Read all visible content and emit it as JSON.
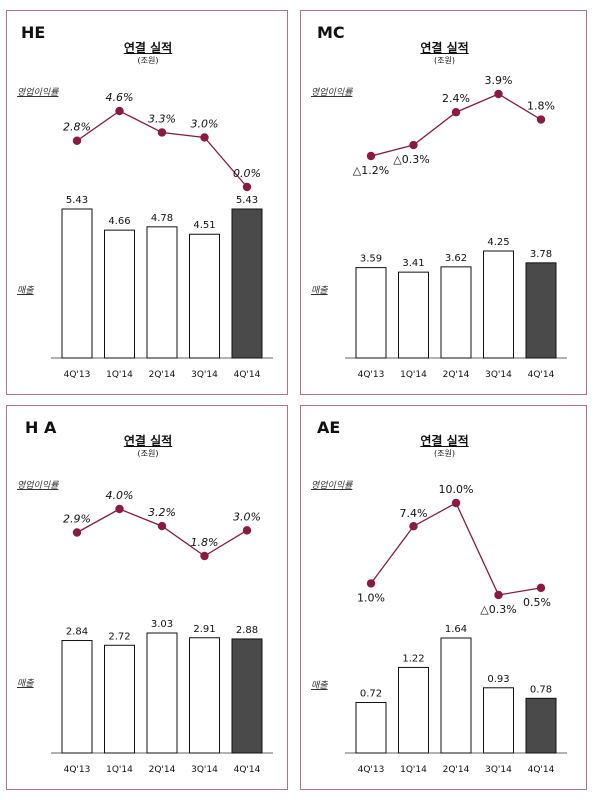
{
  "colors": {
    "line": "#8b1a3e",
    "dot": "#8b1a3e",
    "bar_fill": "#ffffff",
    "bar_highlight": "#4a4a4a",
    "border": "#b07480"
  },
  "labels": {
    "op_margin": "영업이익률",
    "sales": "매출"
  },
  "panels": [
    {
      "segment": "HE",
      "title": "연결 실적",
      "unit": "(조원)",
      "chart_data": {
        "type": "bar",
        "categories": [
          "4Q'13",
          "1Q'14",
          "2Q'14",
          "3Q'14",
          "4Q'14"
        ],
        "sales": [
          5.43,
          4.66,
          4.78,
          4.51,
          5.43
        ],
        "sales_labels": [
          "5.43",
          "4.66",
          "4.78",
          "4.51",
          "5.43"
        ],
        "margin": [
          2.8,
          4.6,
          3.3,
          3.0,
          0.0
        ],
        "margin_labels": [
          "2.8%",
          "4.6%",
          "3.3%",
          "3.0%",
          "0.0%"
        ],
        "highlight_index": 4
      }
    },
    {
      "segment": "MC",
      "title": "연결 실적",
      "unit": "(조원)",
      "chart_data": {
        "type": "bar",
        "categories": [
          "4Q'13",
          "1Q'14",
          "2Q'14",
          "3Q'14",
          "4Q'14"
        ],
        "sales": [
          3.59,
          3.41,
          3.62,
          4.25,
          3.78
        ],
        "sales_labels": [
          "3.59",
          "3.41",
          "3.62",
          "4.25",
          "3.78"
        ],
        "margin": [
          -1.2,
          -0.3,
          2.4,
          3.9,
          1.8
        ],
        "margin_labels": [
          "△1.2%",
          "△0.3%",
          "2.4%",
          "3.9%",
          "1.8%"
        ],
        "highlight_index": 4
      }
    },
    {
      "segment": "H A",
      "title": "연결 실적",
      "unit": "(조원)",
      "chart_data": {
        "type": "bar",
        "categories": [
          "4Q'13",
          "1Q'14",
          "2Q'14",
          "3Q'14",
          "4Q'14"
        ],
        "sales": [
          2.84,
          2.72,
          3.03,
          2.91,
          2.88
        ],
        "sales_labels": [
          "2.84",
          "2.72",
          "3.03",
          "2.91",
          "2.88"
        ],
        "margin": [
          2.9,
          4.0,
          3.2,
          1.8,
          3.0
        ],
        "margin_labels": [
          "2.9%",
          "4.0%",
          "3.2%",
          "1.8%",
          "3.0%"
        ],
        "highlight_index": 4
      }
    },
    {
      "segment": "AE",
      "title": "연결 실적",
      "unit": "(조원)",
      "chart_data": {
        "type": "bar",
        "categories": [
          "4Q'13",
          "1Q'14",
          "2Q'14",
          "3Q'14",
          "4Q'14"
        ],
        "sales": [
          0.72,
          1.22,
          1.64,
          0.93,
          0.78
        ],
        "sales_labels": [
          "0.72",
          "1.22",
          "1.64",
          "0.93",
          "0.78"
        ],
        "margin": [
          1.0,
          7.4,
          10.0,
          -0.3,
          0.5
        ],
        "margin_labels": [
          "1.0%",
          "7.4%",
          "10.0%",
          "△0.3%",
          "0.5%"
        ],
        "highlight_index": 4
      }
    }
  ]
}
